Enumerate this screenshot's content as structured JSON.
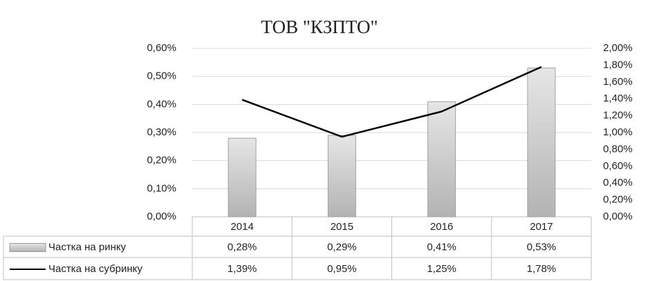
{
  "chart_data": {
    "type": "bar-line",
    "title": "ТОВ \"КЗПТО\"",
    "categories": [
      "2014",
      "2015",
      "2016",
      "2017"
    ],
    "series": [
      {
        "name": "Частка на ринку",
        "type": "bar",
        "color": "#c8c8c8",
        "values": [
          0.28,
          0.29,
          0.41,
          0.53
        ],
        "value_labels": [
          "0,28%",
          "0,29%",
          "0,41%",
          "0,53%"
        ]
      },
      {
        "name": "Частка на субринку",
        "type": "line",
        "axis": "y2",
        "color": "#000000",
        "values": [
          1.39,
          0.95,
          1.25,
          1.78
        ],
        "value_labels": [
          "1,39%",
          "0,95%",
          "1,25%",
          "1,78%"
        ]
      }
    ],
    "ylim": [
      0,
      0.6
    ],
    "yticks": [
      {
        "value": 0,
        "label": "0,00%"
      },
      {
        "value": 0.1,
        "label": "0,10%"
      },
      {
        "value": 0.2,
        "label": "0,20%"
      },
      {
        "value": 0.3,
        "label": "0,30%"
      },
      {
        "value": 0.4,
        "label": "0,40%"
      },
      {
        "value": 0.5,
        "label": "0,50%"
      },
      {
        "value": 0.6,
        "label": "0,60%"
      }
    ],
    "y2lim": [
      0,
      2
    ],
    "y2ticks": [
      {
        "value": 0,
        "label": "0,00%"
      },
      {
        "value": 0.2,
        "label": "0,20%"
      },
      {
        "value": 0.4,
        "label": "0,40%"
      },
      {
        "value": 0.6,
        "label": "0,60%"
      },
      {
        "value": 0.8,
        "label": "0,80%"
      },
      {
        "value": 1.0,
        "label": "1,00%"
      },
      {
        "value": 1.2,
        "label": "1,20%"
      },
      {
        "value": 1.4,
        "label": "1,40%"
      },
      {
        "value": 1.6,
        "label": "1,60%"
      },
      {
        "value": 1.8,
        "label": "1,80%"
      },
      {
        "value": 2.0,
        "label": "2,00%"
      }
    ],
    "grid": true
  }
}
